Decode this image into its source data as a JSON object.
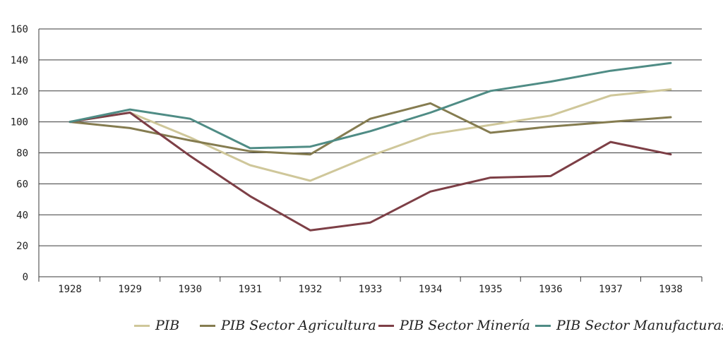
{
  "chart_data": {
    "type": "line",
    "title": "",
    "xlabel": "",
    "ylabel": "",
    "x": [
      "1928",
      "1929",
      "1930",
      "1931",
      "1932",
      "1933",
      "1934",
      "1935",
      "1936",
      "1937",
      "1938"
    ],
    "ylim": [
      0,
      160
    ],
    "yticks": [
      0,
      20,
      40,
      60,
      80,
      100,
      120,
      140,
      160
    ],
    "grid": "horizontal",
    "legend_position": "bottom",
    "series": [
      {
        "name": "PIB",
        "color": "#cfc79a",
        "values": [
          100,
          106,
          90,
          72,
          62,
          78,
          92,
          98,
          104,
          117,
          121
        ]
      },
      {
        "name": "PIB Sector Agricultura",
        "color": "#857c50",
        "values": [
          100,
          96,
          88,
          81,
          79,
          102,
          112,
          93,
          97,
          100,
          103
        ]
      },
      {
        "name": "PIB Sector Minería",
        "color": "#7d3f46",
        "values": [
          100,
          106,
          78,
          52,
          30,
          35,
          55,
          64,
          65,
          87,
          79
        ]
      },
      {
        "name": "PIB Sector Manufacturas",
        "color": "#4f8c85",
        "values": [
          100,
          108,
          102,
          83,
          84,
          94,
          106,
          120,
          126,
          133,
          138
        ]
      }
    ]
  }
}
